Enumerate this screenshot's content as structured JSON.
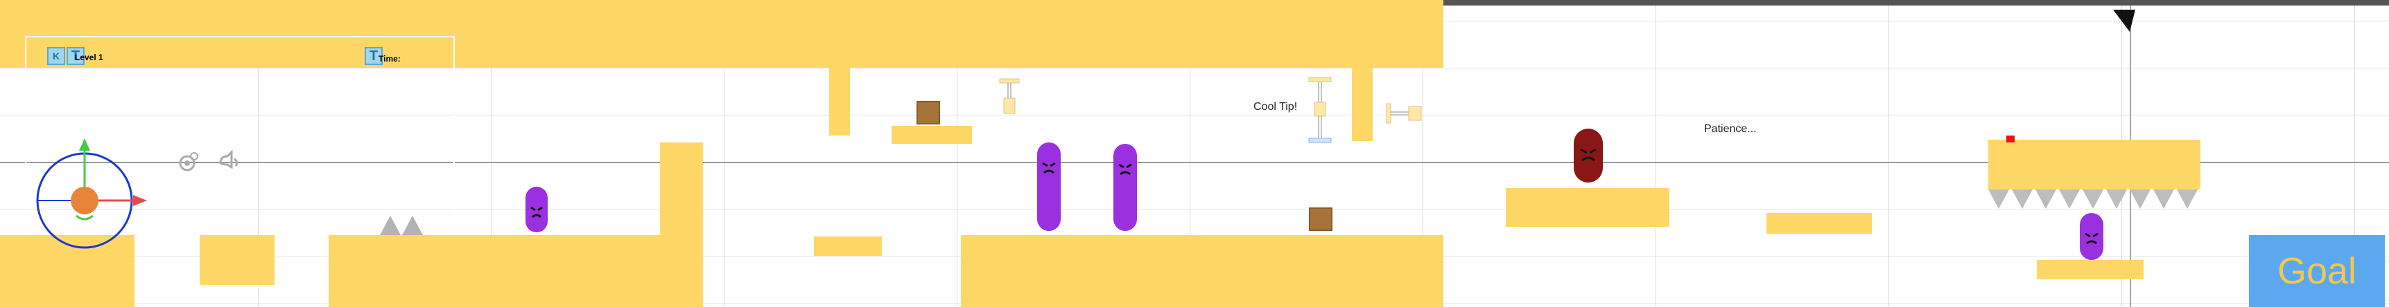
{
  "hud": {
    "icon_a": "K",
    "icon_b": "T",
    "level_label": "Level 1",
    "icon_c": "T",
    "time_label": "Time:"
  },
  "world": {
    "tip_text": "Cool Tip!",
    "patience_text": "Patience...",
    "goal_label": "Goal"
  },
  "colors": {
    "platform": "#ffd766",
    "enemy": "#9b30e0",
    "enemy_dark": "#8a1616",
    "goal": "#5ba8f0",
    "goal_text": "#f3c94a",
    "spike": "#b3b3b3"
  },
  "icons": [
    "player-ball-icon",
    "move-gizmo-icon",
    "camera-icon",
    "audio-icon",
    "spike-icon",
    "piston-icon",
    "crate-icon",
    "flag-pointer-icon"
  ]
}
